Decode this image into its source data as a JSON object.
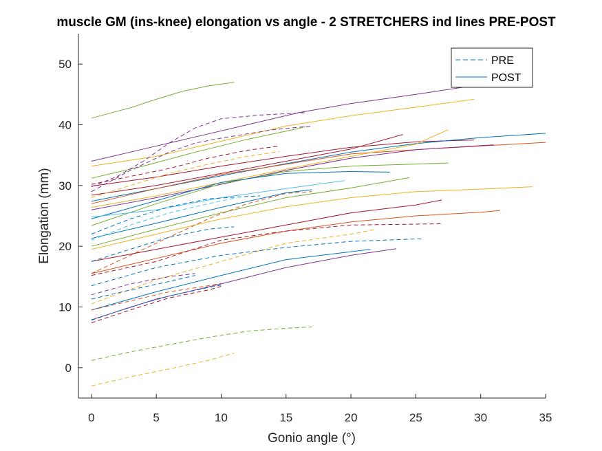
{
  "chart_data": {
    "type": "line",
    "title": "muscle GM (ins-knee) elongation vs angle - 2 STRETCHERS ind lines PRE-POST",
    "xlabel": "Gonio angle (°)",
    "ylabel": "Elongation (mm)",
    "xlim": [
      -1,
      35
    ],
    "ylim": [
      -5,
      55
    ],
    "xticks": [
      0,
      5,
      10,
      15,
      20,
      25,
      30,
      35
    ],
    "yticks": [
      0,
      10,
      20,
      30,
      40,
      50
    ],
    "grid": false,
    "legend": {
      "placement": "top-right",
      "entries": [
        {
          "label": "PRE",
          "style": "dashed",
          "color": "#0072BD"
        },
        {
          "label": "POST",
          "style": "solid",
          "color": "#0072BD"
        }
      ]
    },
    "series": [
      {
        "style": "solid",
        "color": "#77AC30",
        "points": [
          [
            0,
            41.1
          ],
          [
            3,
            42.8
          ],
          [
            5,
            44.2
          ],
          [
            7,
            45.5
          ],
          [
            9,
            46.4
          ],
          [
            11,
            47.0
          ]
        ]
      },
      {
        "style": "solid",
        "color": "#7E2F8E",
        "points": [
          [
            0,
            34.0
          ],
          [
            4,
            36.0
          ],
          [
            8,
            38.0
          ],
          [
            12,
            40.0
          ],
          [
            16,
            42.0
          ],
          [
            20,
            43.5
          ],
          [
            25,
            45.0
          ],
          [
            29,
            46.3
          ],
          [
            30,
            46.5
          ]
        ]
      },
      {
        "style": "solid",
        "color": "#EDB120",
        "points": [
          [
            0,
            33.2
          ],
          [
            5,
            34.8
          ],
          [
            10,
            37.3
          ],
          [
            15,
            39.8
          ],
          [
            20,
            41.5
          ],
          [
            25,
            42.9
          ],
          [
            29.5,
            44.2
          ]
        ]
      },
      {
        "style": "solid",
        "color": "#77AC30",
        "points": [
          [
            0,
            31.2
          ],
          [
            4,
            33.2
          ],
          [
            8,
            35.5
          ],
          [
            12,
            37.6
          ],
          [
            16,
            39.4
          ],
          [
            16.5,
            39.7
          ]
        ]
      },
      {
        "style": "solid",
        "color": "#A2142F",
        "points": [
          [
            0,
            29.9
          ],
          [
            5,
            31.4
          ],
          [
            10,
            33.2
          ],
          [
            15,
            34.8
          ],
          [
            20,
            36.3
          ],
          [
            25,
            37.2
          ],
          [
            29.5,
            37.5
          ]
        ]
      },
      {
        "style": "solid",
        "color": "#0072BD",
        "points": [
          [
            0,
            27.4
          ],
          [
            5,
            29.5
          ],
          [
            10,
            31.6
          ],
          [
            15,
            33.6
          ],
          [
            20,
            35.5
          ],
          [
            25,
            36.9
          ],
          [
            30,
            37.9
          ],
          [
            35,
            38.6
          ]
        ]
      },
      {
        "style": "solid",
        "color": "#D95319",
        "points": [
          [
            0,
            27.0
          ],
          [
            5,
            29.5
          ],
          [
            10,
            31.8
          ],
          [
            15,
            33.5
          ],
          [
            20,
            35.2
          ],
          [
            25,
            35.9
          ],
          [
            30,
            36.5
          ],
          [
            35,
            37.1
          ]
        ]
      },
      {
        "style": "solid",
        "color": "#A2142F",
        "points": [
          [
            0,
            28.4
          ],
          [
            5,
            30.0
          ],
          [
            10,
            32.0
          ],
          [
            15,
            34.0
          ],
          [
            20,
            36.0
          ],
          [
            24,
            38.4
          ]
        ]
      },
      {
        "style": "solid",
        "color": "#EDB120",
        "points": [
          [
            0,
            26.4
          ],
          [
            5,
            28.3
          ],
          [
            10,
            30.5
          ],
          [
            15,
            32.7
          ],
          [
            20,
            34.8
          ],
          [
            25,
            36.8
          ],
          [
            27.5,
            39.2
          ]
        ]
      },
      {
        "style": "solid",
        "color": "#7E2F8E",
        "points": [
          [
            0,
            26.0
          ],
          [
            5,
            28.0
          ],
          [
            10,
            30.2
          ],
          [
            15,
            32.5
          ],
          [
            20,
            34.5
          ],
          [
            25,
            35.9
          ],
          [
            31,
            36.7
          ]
        ]
      },
      {
        "style": "solid",
        "color": "#77AC30",
        "points": [
          [
            0,
            23.4
          ],
          [
            5,
            27.0
          ],
          [
            10,
            30.3
          ],
          [
            15,
            32.3
          ],
          [
            20,
            33.2
          ],
          [
            27.5,
            33.7
          ]
        ]
      },
      {
        "style": "solid",
        "color": "#0072BD",
        "points": [
          [
            0,
            24.5
          ],
          [
            5,
            27.5
          ],
          [
            10,
            30.5
          ],
          [
            15,
            32.0
          ],
          [
            20,
            32.3
          ],
          [
            23,
            32.2
          ]
        ]
      },
      {
        "style": "solid",
        "color": "#77AC30",
        "points": [
          [
            0,
            20.0
          ],
          [
            5,
            22.8
          ],
          [
            10,
            25.5
          ],
          [
            15,
            28.0
          ],
          [
            20,
            29.6
          ],
          [
            24.5,
            31.3
          ]
        ]
      },
      {
        "style": "solid",
        "color": "#EDB120",
        "points": [
          [
            0,
            19.5
          ],
          [
            5,
            22.0
          ],
          [
            10,
            24.5
          ],
          [
            15,
            26.5
          ],
          [
            20,
            28.0
          ],
          [
            25,
            29.0
          ],
          [
            30,
            29.4
          ],
          [
            34,
            29.8
          ]
        ]
      },
      {
        "style": "solid",
        "color": "#0072BD",
        "points": [
          [
            0,
            21.3
          ],
          [
            5,
            23.8
          ],
          [
            10,
            26.4
          ],
          [
            15,
            28.8
          ],
          [
            17,
            29.3
          ]
        ]
      },
      {
        "style": "solid",
        "color": "#4DBEEE",
        "points": [
          [
            0,
            24.8
          ],
          [
            5,
            26.0
          ],
          [
            10,
            28.0
          ],
          [
            15,
            29.5
          ],
          [
            19.5,
            30.8
          ]
        ]
      },
      {
        "style": "solid",
        "color": "#A2142F",
        "points": [
          [
            0,
            17.5
          ],
          [
            5,
            19.5
          ],
          [
            10,
            21.5
          ],
          [
            15,
            23.5
          ],
          [
            20,
            25.5
          ],
          [
            25,
            26.8
          ],
          [
            27,
            27.6
          ]
        ]
      },
      {
        "style": "solid",
        "color": "#D95319",
        "points": [
          [
            0,
            15.5
          ],
          [
            5,
            18.0
          ],
          [
            10,
            20.5
          ],
          [
            15,
            22.5
          ],
          [
            20,
            24.0
          ],
          [
            25,
            25.0
          ],
          [
            30,
            25.6
          ],
          [
            31.5,
            25.9
          ]
        ]
      },
      {
        "style": "solid",
        "color": "#0072BD",
        "points": [
          [
            0,
            9.5
          ],
          [
            5,
            12.5
          ],
          [
            10,
            15.2
          ],
          [
            15,
            17.8
          ],
          [
            20,
            19.1
          ],
          [
            21.5,
            19.5
          ]
        ]
      },
      {
        "style": "solid",
        "color": "#7E2F8E",
        "points": [
          [
            0,
            7.9
          ],
          [
            5,
            11.3
          ],
          [
            10,
            13.8
          ],
          [
            15,
            16.5
          ],
          [
            20,
            18.5
          ],
          [
            23.5,
            19.6
          ]
        ]
      },
      {
        "style": "dashed",
        "color": "#7E2F8E",
        "points": [
          [
            0,
            29.8
          ],
          [
            2,
            31.5
          ],
          [
            4,
            34.0
          ],
          [
            6,
            37.0
          ],
          [
            8,
            39.5
          ],
          [
            10,
            41.0
          ],
          [
            13,
            41.6
          ],
          [
            16.5,
            42.0
          ]
        ]
      },
      {
        "style": "dashed",
        "color": "#7E2F8E",
        "points": [
          [
            0,
            29.0
          ],
          [
            3,
            32.5
          ],
          [
            6,
            35.5
          ],
          [
            8,
            37.0
          ],
          [
            10,
            37.8
          ],
          [
            14,
            39.2
          ],
          [
            17,
            39.8
          ]
        ]
      },
      {
        "style": "dashed",
        "color": "#EDB120",
        "points": [
          [
            0,
            28.0
          ],
          [
            3,
            30.0
          ],
          [
            6,
            32.0
          ],
          [
            9,
            33.5
          ],
          [
            12,
            34.8
          ],
          [
            14.5,
            35.6
          ]
        ]
      },
      {
        "style": "dashed",
        "color": "#A2142F",
        "points": [
          [
            0,
            30.2
          ],
          [
            3,
            31.5
          ],
          [
            6,
            32.8
          ],
          [
            9,
            34.5
          ],
          [
            12,
            35.8
          ],
          [
            14.5,
            36.5
          ]
        ]
      },
      {
        "style": "dashed",
        "color": "#0072BD",
        "points": [
          [
            0,
            22.0
          ],
          [
            3,
            24.5
          ],
          [
            6,
            26.5
          ],
          [
            9,
            27.8
          ],
          [
            12,
            28.2
          ],
          [
            13,
            28.3
          ]
        ]
      },
      {
        "style": "dashed",
        "color": "#D95319",
        "points": [
          [
            0,
            15.5
          ],
          [
            3,
            18.5
          ],
          [
            6,
            21.5
          ],
          [
            9,
            24.5
          ],
          [
            12,
            27.0
          ],
          [
            15,
            28.7
          ],
          [
            17,
            29.0
          ]
        ]
      },
      {
        "style": "dashed",
        "color": "#4DBEEE",
        "points": [
          [
            0,
            21.0
          ],
          [
            3,
            23.5
          ],
          [
            6,
            25.5
          ],
          [
            9,
            27.0
          ],
          [
            11,
            27.9
          ]
        ]
      },
      {
        "style": "dashed",
        "color": "#0072BD",
        "points": [
          [
            0,
            17.5
          ],
          [
            3,
            19.5
          ],
          [
            6,
            21.5
          ],
          [
            9,
            22.8
          ],
          [
            11,
            23.2
          ]
        ]
      },
      {
        "style": "dashed",
        "color": "#A2142F",
        "points": [
          [
            0,
            15.2
          ],
          [
            5,
            17.5
          ],
          [
            10,
            21.0
          ],
          [
            15,
            22.5
          ],
          [
            20,
            23.5
          ],
          [
            27,
            23.7
          ]
        ]
      },
      {
        "style": "dashed",
        "color": "#EDB120",
        "points": [
          [
            0,
            10.5
          ],
          [
            5,
            14.5
          ],
          [
            10,
            17.5
          ],
          [
            15,
            20.5
          ],
          [
            20,
            22.0
          ],
          [
            22,
            22.8
          ]
        ]
      },
      {
        "style": "dashed",
        "color": "#0072BD",
        "points": [
          [
            0,
            13.5
          ],
          [
            5,
            16.5
          ],
          [
            10,
            18.5
          ],
          [
            15,
            19.8
          ],
          [
            20,
            20.8
          ],
          [
            25,
            21.2
          ],
          [
            25.5,
            21.2
          ]
        ]
      },
      {
        "style": "dashed",
        "color": "#7E2F8E",
        "points": [
          [
            0,
            12.0
          ],
          [
            3,
            13.8
          ],
          [
            6,
            15.0
          ],
          [
            8,
            15.5
          ]
        ]
      },
      {
        "style": "dashed",
        "color": "#0072BD",
        "points": [
          [
            0,
            11.3
          ],
          [
            3,
            12.8
          ],
          [
            6,
            14.2
          ],
          [
            8,
            15.2
          ]
        ]
      },
      {
        "style": "dashed",
        "color": "#D95319",
        "points": [
          [
            0,
            9.5
          ],
          [
            3,
            11.0
          ],
          [
            6,
            12.5
          ],
          [
            9,
            13.5
          ],
          [
            10,
            13.9
          ]
        ]
      },
      {
        "style": "dashed",
        "color": "#0072BD",
        "points": [
          [
            0,
            7.8
          ],
          [
            3,
            10.0
          ],
          [
            6,
            11.8
          ],
          [
            9,
            13.2
          ],
          [
            10,
            13.6
          ]
        ]
      },
      {
        "style": "dashed",
        "color": "#A2142F",
        "points": [
          [
            0,
            7.4
          ],
          [
            3,
            9.5
          ],
          [
            6,
            11.5
          ],
          [
            9,
            12.8
          ],
          [
            10,
            13.4
          ]
        ]
      },
      {
        "style": "dashed",
        "color": "#77AC30",
        "points": [
          [
            0,
            1.2
          ],
          [
            3,
            2.6
          ],
          [
            6,
            3.8
          ],
          [
            9,
            5.0
          ],
          [
            12,
            6.0
          ],
          [
            15,
            6.5
          ],
          [
            17,
            6.7
          ]
        ]
      },
      {
        "style": "dashed",
        "color": "#EDB120",
        "points": [
          [
            0,
            -3.0
          ],
          [
            3,
            -1.5
          ],
          [
            6,
            -0.2
          ],
          [
            9,
            1.2
          ],
          [
            11,
            2.4
          ]
        ]
      }
    ]
  }
}
